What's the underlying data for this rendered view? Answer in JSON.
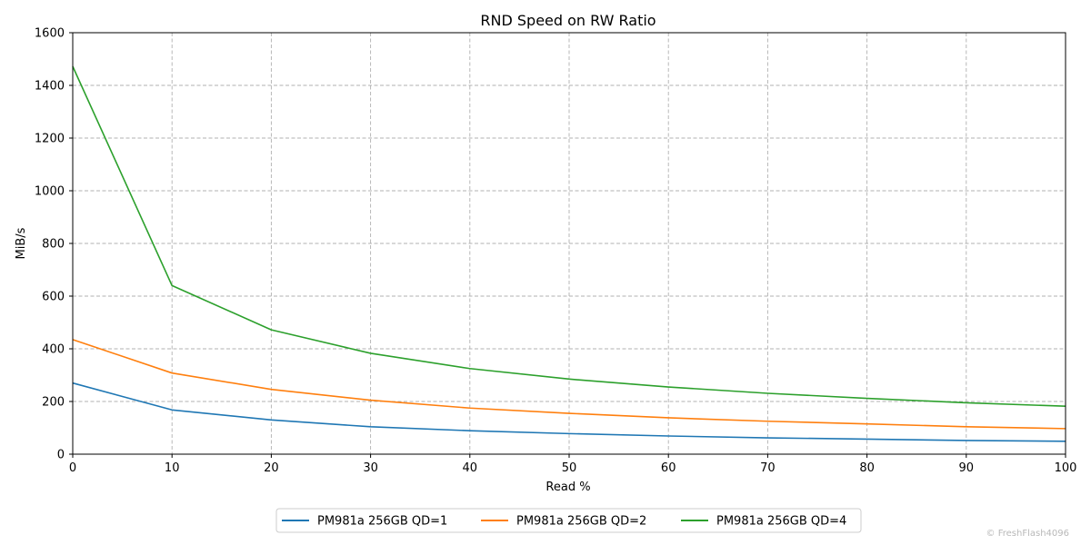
{
  "chart_data": {
    "type": "line",
    "title": "RND Speed on RW Ratio",
    "xlabel": "Read %",
    "ylabel": "MiB/s",
    "xlim": [
      0,
      100
    ],
    "ylim": [
      0,
      1600
    ],
    "x": [
      0,
      10,
      20,
      30,
      40,
      50,
      60,
      70,
      80,
      90,
      100
    ],
    "x_ticks": [
      0,
      10,
      20,
      30,
      40,
      50,
      60,
      70,
      80,
      90,
      100
    ],
    "y_ticks": [
      0,
      200,
      400,
      600,
      800,
      1000,
      1200,
      1400,
      1600
    ],
    "grid": true,
    "legend_position": "bottom-center",
    "series": [
      {
        "name": "PM981a 256GB QD=1",
        "color": "#1f77b4",
        "values": [
          270,
          168,
          130,
          104,
          89,
          78,
          69,
          62,
          57,
          52,
          49
        ]
      },
      {
        "name": "PM981a 256GB QD=2",
        "color": "#ff7f0e",
        "values": [
          435,
          308,
          246,
          205,
          175,
          155,
          138,
          125,
          115,
          104,
          97
        ]
      },
      {
        "name": "PM981a 256GB QD=4",
        "color": "#2ca02c",
        "values": [
          1472,
          640,
          472,
          383,
          325,
          285,
          255,
          231,
          212,
          195,
          182
        ]
      }
    ]
  },
  "footer": {
    "copyright": "© FreshFlash4096"
  }
}
